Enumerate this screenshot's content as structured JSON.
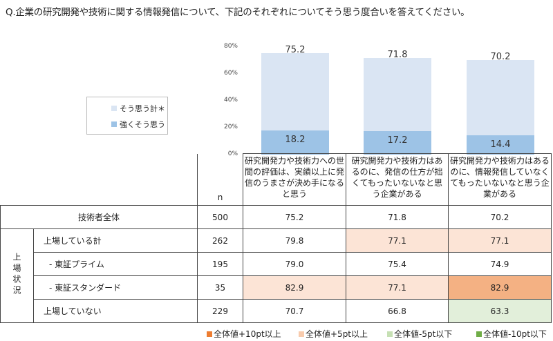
{
  "question": "Q.企業の研究開発や技術に関する情報発信について、下記のそれぞれについてそう思う度合いを答えてください。",
  "colors": {
    "total": "#dae5f3",
    "strong": "#9dc3e6",
    "plus10": "#f4b183",
    "plus5": "#fce4d6",
    "minus5": "#e2efda",
    "minus10": "#70ad47"
  },
  "chart_data": {
    "type": "bar",
    "stacked_overlay": true,
    "categories": [
      "研究開発力や技術力への世間の評価は、実績以上に発信のうまさが決め手になると思う",
      "研究開発力や技術力はあるのに、発信の仕方が拙くてもったいないなと思う企業がある",
      "研究開発力や技術力はあるのに、情報発信していなくてもったいないなと思う企業がある"
    ],
    "series": [
      {
        "name": "そう思う計＊",
        "values": [
          75.2,
          71.8,
          70.2
        ]
      },
      {
        "name": "強くそう思う",
        "values": [
          18.2,
          17.2,
          14.4
        ]
      }
    ],
    "yticks": [
      "0%",
      "20%",
      "40%",
      "60%",
      "80%"
    ],
    "ylim": [
      0,
      80
    ],
    "legend_position": "left"
  },
  "table": {
    "n_header": "n",
    "group_label": "上場状況",
    "rows": [
      {
        "label": "技術者全体",
        "n": "500",
        "values": [
          "75.2",
          "71.8",
          "70.2"
        ],
        "hl": [
          "",
          "",
          ""
        ]
      },
      {
        "label": "上場している計",
        "n": "262",
        "values": [
          "79.8",
          "77.1",
          "77.1"
        ],
        "hl": [
          "",
          "plus5",
          "plus5"
        ]
      },
      {
        "label": "- 東証プライム",
        "n": "195",
        "values": [
          "79.0",
          "75.4",
          "74.9"
        ],
        "hl": [
          "",
          "",
          ""
        ]
      },
      {
        "label": "- 東証スタンダード",
        "n": "35",
        "values": [
          "82.9",
          "77.1",
          "82.9"
        ],
        "hl": [
          "plus5",
          "plus5",
          "plus10"
        ]
      },
      {
        "label": "上場していない",
        "n": "229",
        "values": [
          "70.7",
          "66.8",
          "63.3"
        ],
        "hl": [
          "",
          "",
          "minus5"
        ]
      }
    ]
  },
  "bottom_legend": [
    "全体値+10pt以上",
    "全体値+5pt以上",
    "全体値-5pt以下",
    "全体値-10pt以下"
  ]
}
